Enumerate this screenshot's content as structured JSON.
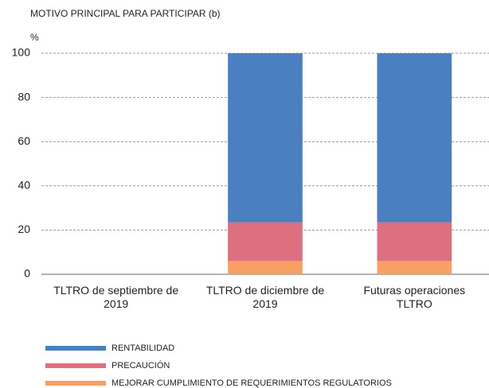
{
  "chart_data": {
    "type": "stacked_bar",
    "title": "MOTIVO PRINCIPAL PARA PARTICIPAR (b)",
    "y_label": "%",
    "categories": [
      "TLTRO de septiembre de 2019",
      "TLTRO de diciembre de 2019",
      "Futuras operaciones TLTRO"
    ],
    "series": [
      {
        "name": "RENTABILIDAD",
        "color": "#4a7fc1",
        "values": [
          null,
          76.5,
          76.5
        ]
      },
      {
        "name": "PRECAUCIÓN",
        "color": "#de6f80",
        "values": [
          null,
          17.5,
          17.5
        ]
      },
      {
        "name": "MEJORAR CUMPLIMIENTO DE REQUERIMIENTOS REGULATORIOS",
        "color": "#f7a062",
        "values": [
          null,
          6,
          6
        ]
      }
    ],
    "ylim": [
      0,
      100
    ],
    "yticks": [
      0,
      20,
      40,
      60,
      80,
      100
    ],
    "grid": true
  }
}
